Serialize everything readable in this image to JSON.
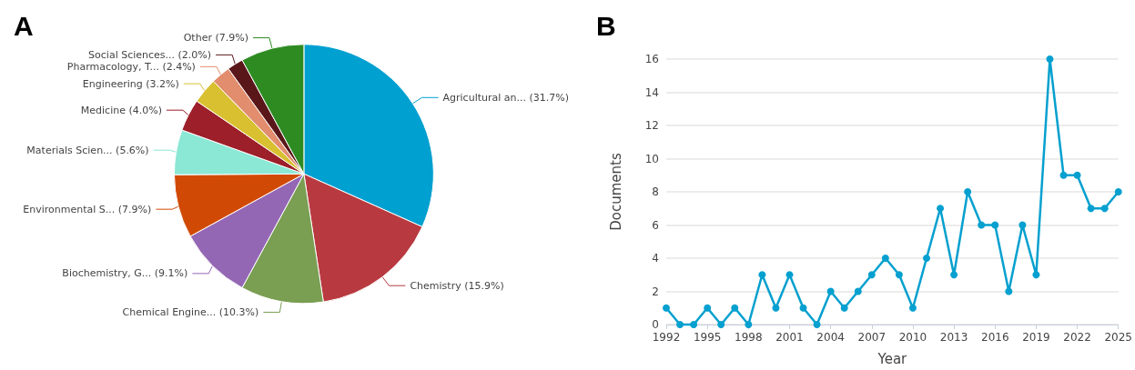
{
  "chart_data": [
    {
      "type": "pie",
      "title": "A",
      "categories": [
        "Agricultural an...",
        "Chemistry",
        "Chemical Engine...",
        "Biochemistry, G...",
        "Environmental S...",
        "Materials Scien...",
        "Medicine",
        "Engineering",
        "Pharmacology, T...",
        "Social Sciences...",
        "Other"
      ],
      "values": [
        31.7,
        15.9,
        10.3,
        9.1,
        7.9,
        5.6,
        4.0,
        3.2,
        2.4,
        2.0,
        7.9
      ],
      "value_labels": [
        "(31.7%)",
        "(15.9%)",
        "(10.3%)",
        "(9.1%)",
        "(7.9%)",
        "(5.6%)",
        "(4.0%)",
        "(3.2%)",
        "(2.4%)",
        "(2.0%)",
        "(7.9%)"
      ],
      "colors": [
        "#00a0d1",
        "#b83a40",
        "#7a9e52",
        "#9467b5",
        "#d14a05",
        "#8ae8d4",
        "#9c1f2a",
        "#d8c030",
        "#e28e6e",
        "#5a171a",
        "#2e8b22"
      ],
      "legend": false
    },
    {
      "type": "line",
      "title": "B",
      "xlabel": "Year",
      "ylabel": "Documents",
      "x": [
        1992,
        1993,
        1994,
        1995,
        1996,
        1997,
        1998,
        1999,
        2000,
        2001,
        2002,
        2003,
        2004,
        2005,
        2006,
        2007,
        2008,
        2009,
        2010,
        2011,
        2012,
        2013,
        2014,
        2015,
        2016,
        2017,
        2018,
        2019,
        2020,
        2021,
        2022,
        2023,
        2024,
        2025
      ],
      "series": [
        {
          "color": "#05a0cf",
          "values": [
            1,
            0,
            0,
            1,
            0,
            1,
            0,
            3,
            1,
            3,
            1,
            0,
            2,
            1,
            2,
            3,
            4,
            3,
            1,
            4,
            7,
            3,
            8,
            6,
            6,
            2,
            6,
            3,
            16,
            9,
            9,
            7,
            7,
            8
          ]
        }
      ],
      "xlim": [
        1992,
        2025
      ],
      "xticks": [
        1992,
        1995,
        1998,
        2001,
        2004,
        2007,
        2010,
        2013,
        2016,
        2019,
        2022,
        2025
      ],
      "ylim": [
        0,
        16
      ],
      "yticks": [
        0,
        2,
        4,
        6,
        8,
        10,
        12,
        14,
        16
      ],
      "grid": "y",
      "marker": "circle",
      "line_style": "solid",
      "legend": false
    }
  ]
}
